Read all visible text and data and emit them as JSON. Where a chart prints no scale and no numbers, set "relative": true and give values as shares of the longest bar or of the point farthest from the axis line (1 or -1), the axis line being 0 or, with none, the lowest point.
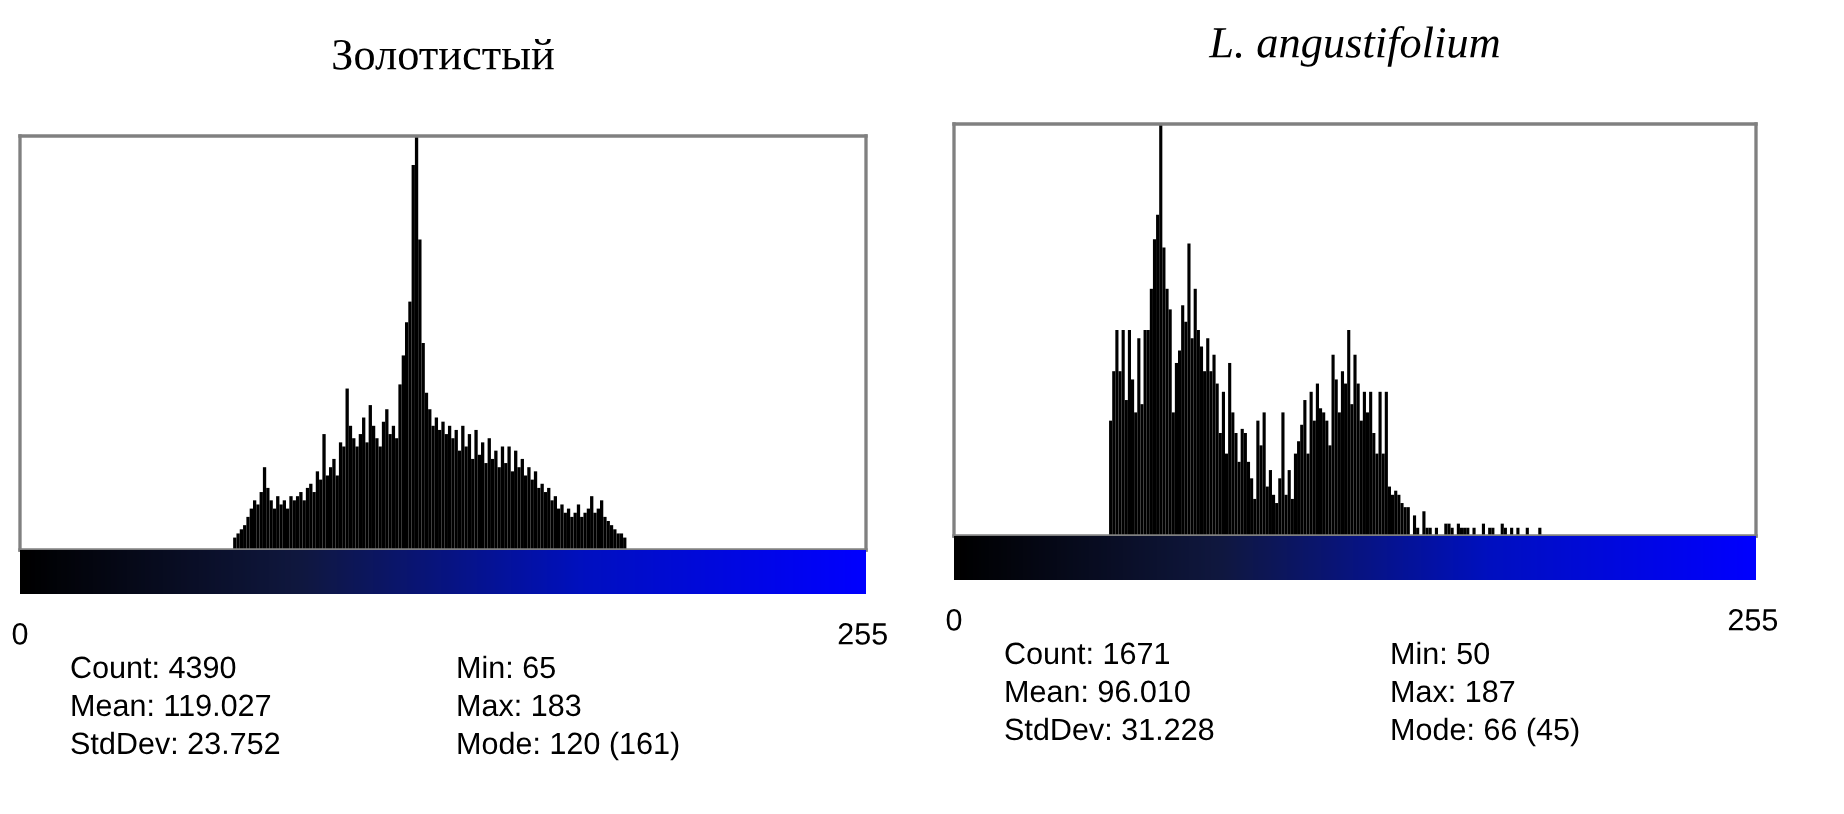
{
  "chart_data": [
    {
      "type": "bar",
      "title": "Золотистый",
      "relative": true,
      "color": "#000000",
      "xlim": [
        0,
        256
      ],
      "xticks": [
        0,
        255
      ],
      "tick_labels": "x",
      "x": [
        65,
        66,
        67,
        68,
        69,
        70,
        71,
        72,
        73,
        74,
        75,
        76,
        77,
        78,
        79,
        80,
        81,
        82,
        83,
        84,
        85,
        86,
        87,
        88,
        89,
        90,
        91,
        92,
        93,
        94,
        95,
        96,
        97,
        98,
        99,
        100,
        101,
        102,
        103,
        104,
        105,
        106,
        107,
        108,
        109,
        110,
        111,
        112,
        113,
        114,
        115,
        116,
        117,
        118,
        119,
        120,
        121,
        122,
        123,
        124,
        125,
        126,
        127,
        128,
        129,
        130,
        131,
        132,
        133,
        134,
        135,
        136,
        137,
        138,
        139,
        140,
        141,
        142,
        143,
        144,
        145,
        146,
        147,
        148,
        149,
        150,
        151,
        152,
        153,
        154,
        155,
        156,
        157,
        158,
        159,
        160,
        161,
        162,
        163,
        164,
        165,
        166,
        167,
        168,
        169,
        170,
        171,
        172,
        173,
        174,
        175,
        176,
        177,
        178,
        179,
        180,
        181,
        182,
        183
      ],
      "values": [
        0.03,
        0.04,
        0.05,
        0.06,
        0.08,
        0.1,
        0.12,
        0.11,
        0.14,
        0.2,
        0.15,
        0.12,
        0.1,
        0.13,
        0.11,
        0.12,
        0.1,
        0.13,
        0.12,
        0.13,
        0.14,
        0.12,
        0.15,
        0.16,
        0.14,
        0.19,
        0.17,
        0.28,
        0.18,
        0.2,
        0.22,
        0.18,
        0.26,
        0.25,
        0.39,
        0.3,
        0.27,
        0.25,
        0.28,
        0.32,
        0.26,
        0.35,
        0.3,
        0.27,
        0.25,
        0.31,
        0.34,
        0.28,
        0.3,
        0.27,
        0.4,
        0.47,
        0.55,
        0.6,
        0.93,
        1.0,
        0.75,
        0.5,
        0.38,
        0.34,
        0.3,
        0.32,
        0.29,
        0.31,
        0.28,
        0.3,
        0.27,
        0.29,
        0.24,
        0.3,
        0.25,
        0.28,
        0.22,
        0.29,
        0.23,
        0.26,
        0.21,
        0.27,
        0.22,
        0.24,
        0.2,
        0.25,
        0.21,
        0.25,
        0.19,
        0.24,
        0.2,
        0.22,
        0.18,
        0.2,
        0.17,
        0.19,
        0.15,
        0.16,
        0.14,
        0.15,
        0.12,
        0.13,
        0.1,
        0.11,
        0.09,
        0.1,
        0.08,
        0.09,
        0.11,
        0.08,
        0.09,
        0.1,
        0.13,
        0.09,
        0.1,
        0.12,
        0.08,
        0.07,
        0.06,
        0.05,
        0.04,
        0.04,
        0.03
      ],
      "annotations": [
        "Count: 4390",
        "Mean: 119.027",
        "StdDev: 23.752",
        "Min: 65",
        "Max: 183",
        "Mode: 120 (161)"
      ]
    },
    {
      "type": "bar",
      "title": "L. angustifolium",
      "relative": true,
      "color": "#000000",
      "xlim": [
        0,
        256
      ],
      "xticks": [
        0,
        255
      ],
      "tick_labels": "x",
      "x": [
        50,
        51,
        52,
        53,
        54,
        55,
        56,
        57,
        58,
        59,
        60,
        61,
        62,
        63,
        64,
        65,
        66,
        67,
        68,
        69,
        70,
        71,
        72,
        73,
        74,
        75,
        76,
        77,
        78,
        79,
        80,
        81,
        82,
        83,
        84,
        85,
        86,
        87,
        88,
        89,
        90,
        91,
        92,
        93,
        94,
        95,
        96,
        97,
        98,
        99,
        100,
        101,
        102,
        103,
        104,
        105,
        106,
        107,
        108,
        109,
        110,
        111,
        112,
        113,
        114,
        115,
        116,
        117,
        118,
        119,
        120,
        121,
        122,
        123,
        124,
        125,
        126,
        127,
        128,
        129,
        130,
        131,
        132,
        133,
        134,
        135,
        136,
        137,
        138,
        139,
        140,
        141,
        142,
        143,
        144,
        145,
        146,
        147,
        148,
        149,
        150,
        151,
        152,
        153,
        154,
        155,
        156,
        157,
        158,
        159,
        160,
        161,
        162,
        163,
        164,
        165,
        166,
        167,
        168,
        169,
        170,
        171,
        172,
        173,
        174,
        175,
        176,
        177,
        178,
        179,
        180,
        181,
        182,
        183,
        184,
        185,
        186,
        187
      ],
      "values": [
        0.28,
        0.4,
        0.5,
        0.4,
        0.5,
        0.33,
        0.5,
        0.38,
        0.3,
        0.48,
        0.32,
        0.5,
        0.5,
        0.6,
        0.72,
        0.78,
        1.0,
        0.7,
        0.6,
        0.55,
        0.3,
        0.42,
        0.45,
        0.56,
        0.52,
        0.71,
        0.48,
        0.6,
        0.5,
        0.46,
        0.4,
        0.48,
        0.4,
        0.44,
        0.37,
        0.25,
        0.35,
        0.2,
        0.42,
        0.3,
        0.25,
        0.18,
        0.26,
        0.25,
        0.18,
        0.14,
        0.09,
        0.28,
        0.22,
        0.3,
        0.12,
        0.16,
        0.1,
        0.08,
        0.14,
        0.3,
        0.1,
        0.16,
        0.09,
        0.2,
        0.23,
        0.27,
        0.33,
        0.2,
        0.35,
        0.28,
        0.37,
        0.31,
        0.3,
        0.28,
        0.22,
        0.44,
        0.38,
        0.3,
        0.4,
        0.37,
        0.5,
        0.32,
        0.44,
        0.37,
        0.28,
        0.35,
        0.3,
        0.35,
        0.25,
        0.2,
        0.35,
        0.2,
        0.35,
        0.12,
        0.1,
        0.11,
        0.1,
        0.08,
        0.07,
        0.07,
        0.0,
        0.05,
        0.02,
        0.0,
        0.06,
        0.02,
        0.02,
        0.0,
        0.02,
        0.0,
        0.0,
        0.03,
        0.03,
        0.02,
        0.0,
        0.03,
        0.02,
        0.02,
        0.02,
        0.0,
        0.02,
        0.0,
        0.0,
        0.03,
        0.0,
        0.02,
        0.02,
        0.0,
        0.0,
        0.03,
        0.02,
        0.0,
        0.02,
        0.0,
        0.02,
        0.0,
        0.0,
        0.02,
        0.0,
        0.0,
        0.0,
        0.02
      ],
      "annotations": [
        "Count: 1671",
        "Mean: 96.010",
        "StdDev: 31.228",
        "Min: 50",
        "Max: 187",
        "Mode: 66 (45)"
      ]
    }
  ]
}
